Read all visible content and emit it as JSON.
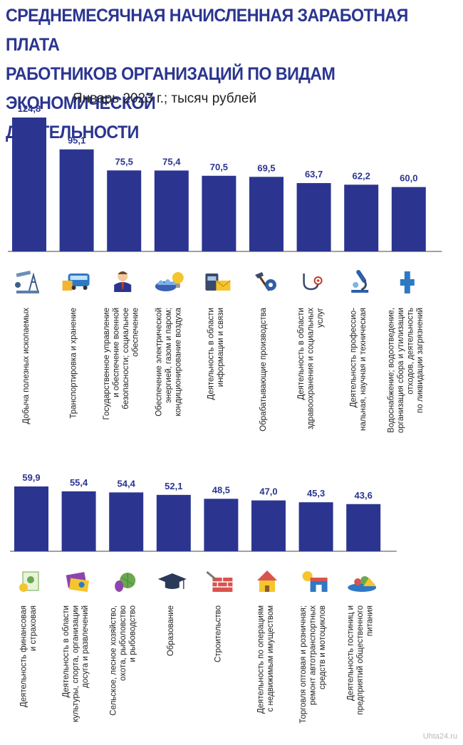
{
  "header": {
    "title_lines": [
      "СРЕДНЕМЕСЯЧНАЯ НАЧИСЛЕННАЯ ЗАРАБОТНАЯ ПЛАТА",
      "РАБОТНИКОВ ОРГАНИЗАЦИЙ ПО ВИДАМ ЭКОНОМИЧЕСКОЙ",
      "ДЕЯТЕЛЬНОСТИ"
    ],
    "subtitle": "Январь 2023 г.; тысяч рублей"
  },
  "watermark": "Uhta24.ru",
  "colors": {
    "bar": "#2B3590",
    "title": "#2B3590",
    "axis": "#444444",
    "label": "#222222"
  },
  "chart_data": [
    {
      "type": "bar",
      "title": "СРЕДНЕМЕСЯЧНАЯ НАЧИСЛЕННАЯ ЗАРАБОТНАЯ ПЛАТА РАБОТНИКОВ ОРГАНИЗАЦИЙ ПО ВИДАМ ЭКОНОМИЧЕСКОЙ ДЕЯТЕЛЬНОСТИ",
      "subtitle": "Январь 2023 г.; тысяч рублей",
      "categories": [
        [
          "Добыча полезных ископаемых"
        ],
        [
          "Транспортировка и хранение"
        ],
        [
          "Государственное управление",
          "и обеспечение военной",
          "безопасности; социальное",
          "обеспечение"
        ],
        [
          "Обеспечение электрической",
          "энергией, газом и паром;",
          "кондиционирование воздуха"
        ],
        [
          "Деятельность в области",
          "информации и связи"
        ],
        [
          "Обрабатывающие производства"
        ],
        [
          "Деятельность в области",
          "здравоохранения и социальных",
          "услуг"
        ],
        [
          "Деятельность профессио-",
          "нальная, научная и техническая"
        ],
        [
          "Водоснабжение; водоотведение,",
          "организация сбора и утилизации",
          "отходов, деятельность",
          "по ликвидации загрязнений"
        ]
      ],
      "values": [
        124.8,
        95.1,
        75.5,
        75.4,
        70.5,
        69.5,
        63.7,
        62.2,
        60.0
      ],
      "value_labels": [
        "124,8",
        "95,1",
        "75,5",
        "75,4",
        "70,5",
        "69,5",
        "63,7",
        "62,2",
        "60,0"
      ],
      "icons": [
        "oil-pump-icon",
        "bus-icon",
        "official-person-icon",
        "gas-flame-lightbulb-icon",
        "phone-envelope-icon",
        "hammer-gear-icon",
        "stethoscope-icon",
        "microscope-icon",
        "water-pipe-icon"
      ],
      "ylim": [
        0,
        130
      ]
    },
    {
      "type": "bar",
      "categories": [
        [
          "Деятельность финансовая",
          "и страховая"
        ],
        [
          "Деятельность в области",
          "культуры, спорта, организации",
          "досуга и развлечений"
        ],
        [
          "Сельское, лесное хозяйство,",
          "охота, рыболовство",
          "и рыбоводство"
        ],
        [
          "Образование"
        ],
        [
          "Строительство"
        ],
        [
          "Деятельность по операциям",
          "с недвижимым имуществом"
        ],
        [
          "Торговля оптовая и розничная;",
          "ремонт автотранспортных",
          "средств и мотоциклов"
        ],
        [
          "Деятельность гостиниц и",
          "предприятий общественного",
          "питания"
        ]
      ],
      "values": [
        59.9,
        55.4,
        54.4,
        52.1,
        48.5,
        47.0,
        45.3,
        43.6
      ],
      "value_labels": [
        "59,9",
        "55,4",
        "54,4",
        "52,1",
        "48,5",
        "47,0",
        "45,3",
        "43,6"
      ],
      "icons": [
        "money-document-icon",
        "theater-tickets-icon",
        "vegetables-icon",
        "graduation-cap-icon",
        "trowel-bricks-icon",
        "house-icon",
        "coins-shop-icon",
        "food-plate-icon"
      ],
      "ylim": [
        0,
        130
      ]
    }
  ]
}
